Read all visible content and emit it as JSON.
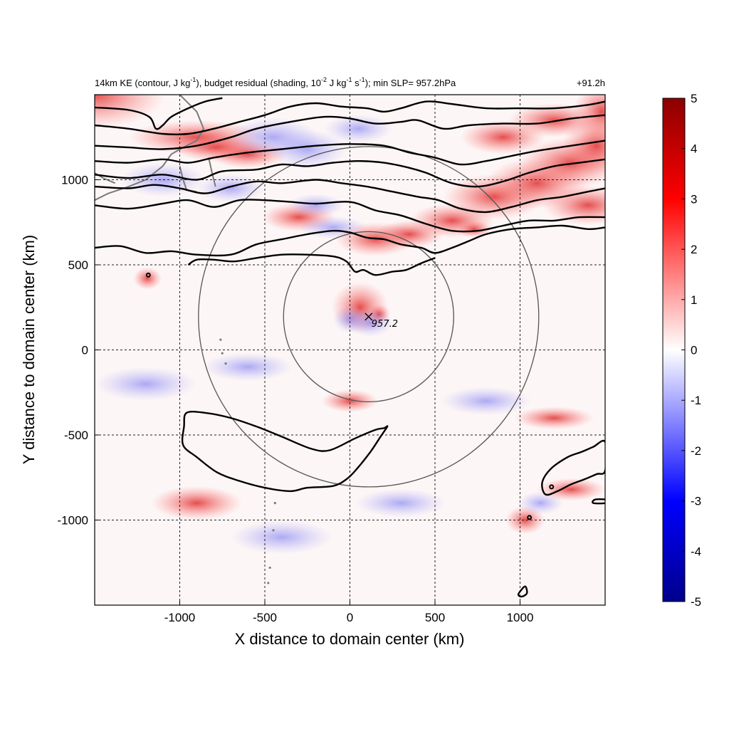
{
  "chart_data": {
    "type": "heatmap",
    "title_parts": {
      "a": "14km KE (contour, J kg",
      "a_sup": "-1",
      "b": "), budget residual (shading, 10",
      "b_sup": "-2",
      "c": " J kg",
      "c_sup": "-1",
      "d": " s",
      "d_sup": "-1",
      "e": "); min SLP= 957.2hPa"
    },
    "time_label": "+91.2h",
    "xlabel": "X distance to domain center (km)",
    "ylabel": "Y distance to domain center (km)",
    "xlim": [
      -1500,
      1500
    ],
    "ylim": [
      -1500,
      1500
    ],
    "xticks": [
      -1000,
      -500,
      0,
      500,
      1000
    ],
    "xtick_labels": [
      "-1000",
      "-500",
      "0",
      "500",
      "1000"
    ],
    "yticks": [
      -1000,
      -500,
      0,
      500,
      1000
    ],
    "ytick_labels": [
      "-1000",
      "-500",
      "0",
      "500",
      "1000"
    ],
    "grid": true,
    "colorbar": {
      "range": [
        -5,
        5
      ],
      "ticks": [
        5,
        4,
        3,
        2,
        1,
        0,
        -1,
        -2,
        -3,
        -4,
        -5
      ],
      "tick_labels": [
        "5",
        "4",
        "3",
        "2",
        "1",
        "0",
        "-1",
        "-2",
        "-3",
        "-4",
        "-5"
      ],
      "colormap": [
        "#00008b",
        "#0000ff",
        "#ffffff",
        "#ff0000",
        "#8b0000"
      ]
    },
    "storm_center": {
      "x": 110,
      "y": 195,
      "label": "957.2"
    },
    "range_rings_km": [
      500,
      1000
    ],
    "ke_contours": [
      [
        [
          -1500,
          1425
        ],
        [
          -1300,
          1410
        ],
        [
          -1180,
          1370
        ],
        [
          -1140,
          1300
        ],
        [
          -1100,
          1320
        ],
        [
          -1050,
          1370
        ],
        [
          -950,
          1420
        ],
        [
          -850,
          1460
        ],
        [
          -750,
          1480
        ]
      ],
      [
        [
          -1500,
          1320
        ],
        [
          -1300,
          1300
        ],
        [
          -1100,
          1270
        ],
        [
          -950,
          1270
        ],
        [
          -800,
          1300
        ],
        [
          -650,
          1340
        ],
        [
          -500,
          1380
        ],
        [
          -350,
          1430
        ],
        [
          -200,
          1450
        ],
        [
          -50,
          1430
        ],
        [
          100,
          1420
        ],
        [
          200,
          1400
        ],
        [
          300,
          1420
        ],
        [
          450,
          1460
        ],
        [
          600,
          1445
        ],
        [
          800,
          1420
        ],
        [
          1000,
          1420
        ],
        [
          1200,
          1420
        ],
        [
          1400,
          1440
        ],
        [
          1500,
          1460
        ]
      ],
      [
        [
          -1500,
          1200
        ],
        [
          -1300,
          1190
        ],
        [
          -1100,
          1180
        ],
        [
          -900,
          1200
        ],
        [
          -700,
          1250
        ],
        [
          -550,
          1300
        ],
        [
          -350,
          1340
        ],
        [
          -150,
          1370
        ],
        [
          0,
          1360
        ],
        [
          150,
          1330
        ],
        [
          300,
          1340
        ],
        [
          400,
          1350
        ],
        [
          550,
          1300
        ],
        [
          700,
          1320
        ],
        [
          900,
          1330
        ],
        [
          1100,
          1330
        ],
        [
          1300,
          1360
        ],
        [
          1500,
          1380
        ]
      ],
      [
        [
          -1500,
          1110
        ],
        [
          -1300,
          1100
        ],
        [
          -1100,
          1120
        ],
        [
          -950,
          1100
        ],
        [
          -800,
          1130
        ],
        [
          -600,
          1160
        ],
        [
          -400,
          1180
        ],
        [
          -200,
          1200
        ],
        [
          0,
          1210
        ],
        [
          200,
          1200
        ],
        [
          350,
          1160
        ],
        [
          500,
          1130
        ],
        [
          650,
          1090
        ],
        [
          800,
          1110
        ],
        [
          950,
          1140
        ],
        [
          1100,
          1170
        ],
        [
          1300,
          1200
        ],
        [
          1500,
          1230
        ]
      ],
      [
        [
          -1500,
          1030
        ],
        [
          -1300,
          1010
        ],
        [
          -1100,
          1030
        ],
        [
          -900,
          1000
        ],
        [
          -750,
          1050
        ],
        [
          -550,
          1060
        ],
        [
          -400,
          1090
        ],
        [
          -250,
          1080
        ],
        [
          -100,
          1100
        ],
        [
          50,
          1110
        ],
        [
          200,
          1100
        ],
        [
          350,
          1070
        ],
        [
          450,
          1040
        ],
        [
          600,
          980
        ],
        [
          750,
          960
        ],
        [
          900,
          990
        ],
        [
          1050,
          1040
        ],
        [
          1200,
          1080
        ],
        [
          1350,
          1100
        ],
        [
          1500,
          1120
        ]
      ],
      [
        [
          -1500,
          960
        ],
        [
          -1300,
          950
        ],
        [
          -1150,
          970
        ],
        [
          -1000,
          950
        ],
        [
          -850,
          920
        ],
        [
          -700,
          960
        ],
        [
          -550,
          990
        ],
        [
          -400,
          980
        ],
        [
          -200,
          1000
        ],
        [
          -50,
          980
        ],
        [
          100,
          960
        ],
        [
          250,
          930
        ],
        [
          400,
          900
        ],
        [
          520,
          880
        ],
        [
          650,
          830
        ],
        [
          800,
          810
        ],
        [
          950,
          840
        ],
        [
          1100,
          880
        ],
        [
          1250,
          900
        ],
        [
          1400,
          930
        ],
        [
          1500,
          950
        ]
      ],
      [
        [
          -1500,
          850
        ],
        [
          -1300,
          830
        ],
        [
          -1100,
          860
        ],
        [
          -950,
          880
        ],
        [
          -800,
          840
        ],
        [
          -650,
          880
        ],
        [
          -500,
          880
        ],
        [
          -350,
          870
        ],
        [
          -200,
          860
        ],
        [
          0,
          870
        ],
        [
          150,
          820
        ],
        [
          300,
          790
        ],
        [
          450,
          740
        ],
        [
          600,
          700
        ],
        [
          750,
          700
        ],
        [
          900,
          730
        ],
        [
          1050,
          760
        ],
        [
          1200,
          760
        ],
        [
          1350,
          780
        ],
        [
          1500,
          780
        ]
      ],
      [
        [
          -1500,
          600
        ],
        [
          -1350,
          610
        ],
        [
          -1200,
          570
        ],
        [
          -1050,
          580
        ],
        [
          -900,
          560
        ],
        [
          -700,
          560
        ],
        [
          -550,
          620
        ],
        [
          -400,
          650
        ],
        [
          -250,
          680
        ],
        [
          -100,
          700
        ],
        [
          0,
          690
        ],
        [
          100,
          660
        ],
        [
          200,
          650
        ],
        [
          300,
          620
        ],
        [
          420,
          600
        ],
        [
          500,
          570
        ],
        [
          600,
          600
        ],
        [
          700,
          640
        ],
        [
          800,
          680
        ],
        [
          950,
          710
        ],
        [
          1100,
          720
        ],
        [
          1250,
          730
        ],
        [
          1400,
          710
        ],
        [
          1500,
          720
        ]
      ],
      [
        [
          -950,
          500
        ],
        [
          -900,
          530
        ],
        [
          -800,
          530
        ],
        [
          -680,
          520
        ],
        [
          -550,
          540
        ],
        [
          -400,
          560
        ],
        [
          -250,
          560
        ],
        [
          -100,
          550
        ],
        [
          -20,
          520
        ],
        [
          30,
          460
        ],
        [
          80,
          470
        ],
        [
          150,
          440
        ],
        [
          250,
          460
        ],
        [
          330,
          470
        ],
        [
          420,
          510
        ],
        [
          500,
          540
        ]
      ]
    ],
    "ke_closed_contours": [
      [
        [
          -960,
          -370
        ],
        [
          -850,
          -370
        ],
        [
          -700,
          -400
        ],
        [
          -550,
          -450
        ],
        [
          -400,
          -510
        ],
        [
          -230,
          -580
        ],
        [
          -120,
          -590
        ],
        [
          30,
          -520
        ],
        [
          150,
          -470
        ],
        [
          200,
          -460
        ],
        [
          220,
          -450
        ],
        [
          180,
          -510
        ],
        [
          120,
          -600
        ],
        [
          40,
          -700
        ],
        [
          -20,
          -760
        ],
        [
          -100,
          -800
        ],
        [
          -250,
          -810
        ],
        [
          -350,
          -830
        ],
        [
          -500,
          -810
        ],
        [
          -650,
          -770
        ],
        [
          -780,
          -720
        ],
        [
          -900,
          -630
        ],
        [
          -980,
          -560
        ],
        [
          -975,
          -450
        ]
      ],
      [
        [
          1500,
          -540
        ],
        [
          1430,
          -570
        ],
        [
          1360,
          -600
        ],
        [
          1280,
          -630
        ],
        [
          1180,
          -700
        ],
        [
          1130,
          -780
        ],
        [
          1150,
          -850
        ],
        [
          1220,
          -830
        ],
        [
          1300,
          -790
        ],
        [
          1380,
          -760
        ],
        [
          1450,
          -730
        ],
        [
          1500,
          -710
        ]
      ],
      [
        [
          1500,
          -880
        ],
        [
          1440,
          -880
        ],
        [
          1430,
          -900
        ],
        [
          1500,
          -900
        ]
      ],
      [
        [
          1030,
          -1390
        ],
        [
          1000,
          -1420
        ],
        [
          990,
          -1440
        ],
        [
          1010,
          -1450
        ],
        [
          1040,
          -1430
        ]
      ]
    ],
    "small_contour_dots": [
      [
        -1185,
        440
      ],
      [
        1055,
        -985
      ],
      [
        1185,
        -805
      ]
    ]
  }
}
